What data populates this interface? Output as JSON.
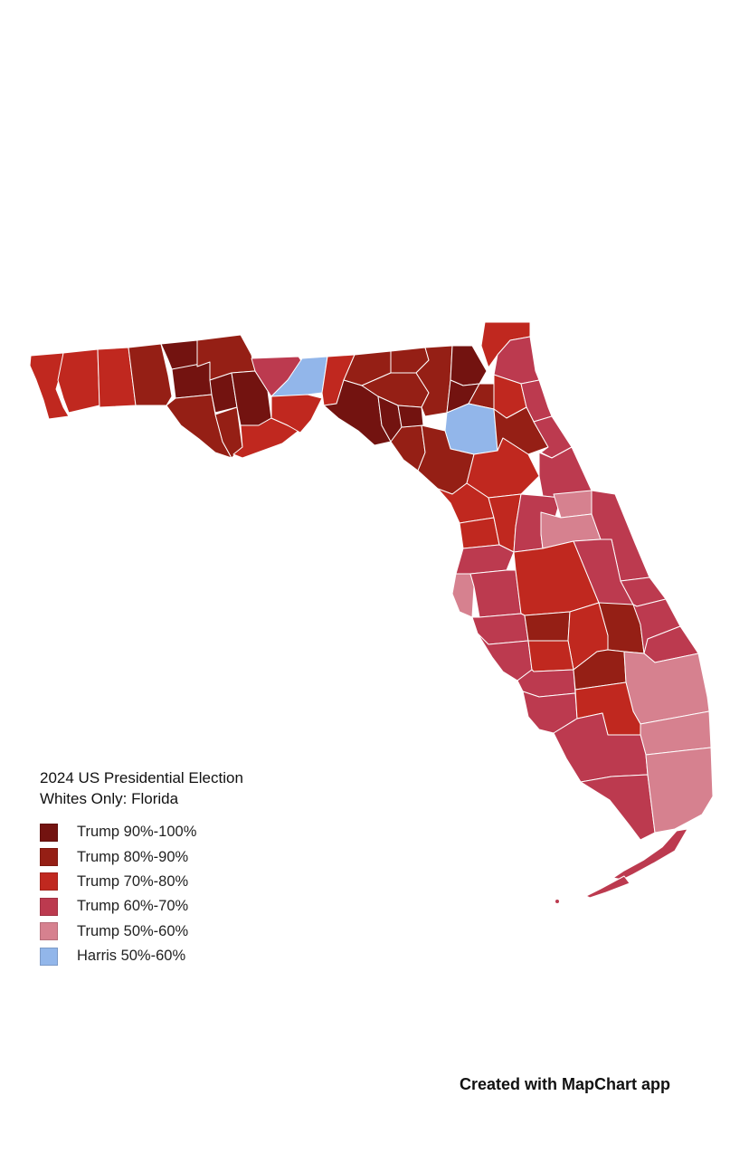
{
  "map": {
    "legend": {
      "title_line1": "2024 US Presidential Election",
      "title_line2": "Whites Only: Florida",
      "items": [
        {
          "label": "Trump 90%-100%",
          "color": "#731310"
        },
        {
          "label": "Trump 80%-90%",
          "color": "#951f15"
        },
        {
          "label": "Trump 70%-80%",
          "color": "#c0281f"
        },
        {
          "label": "Trump 60%-70%",
          "color": "#bc3a4f"
        },
        {
          "label": "Trump 50%-60%",
          "color": "#d6818f"
        },
        {
          "label": "Harris 50%-60%",
          "color": "#92b6ea"
        }
      ]
    },
    "credit": "Created with MapChart app"
  }
}
